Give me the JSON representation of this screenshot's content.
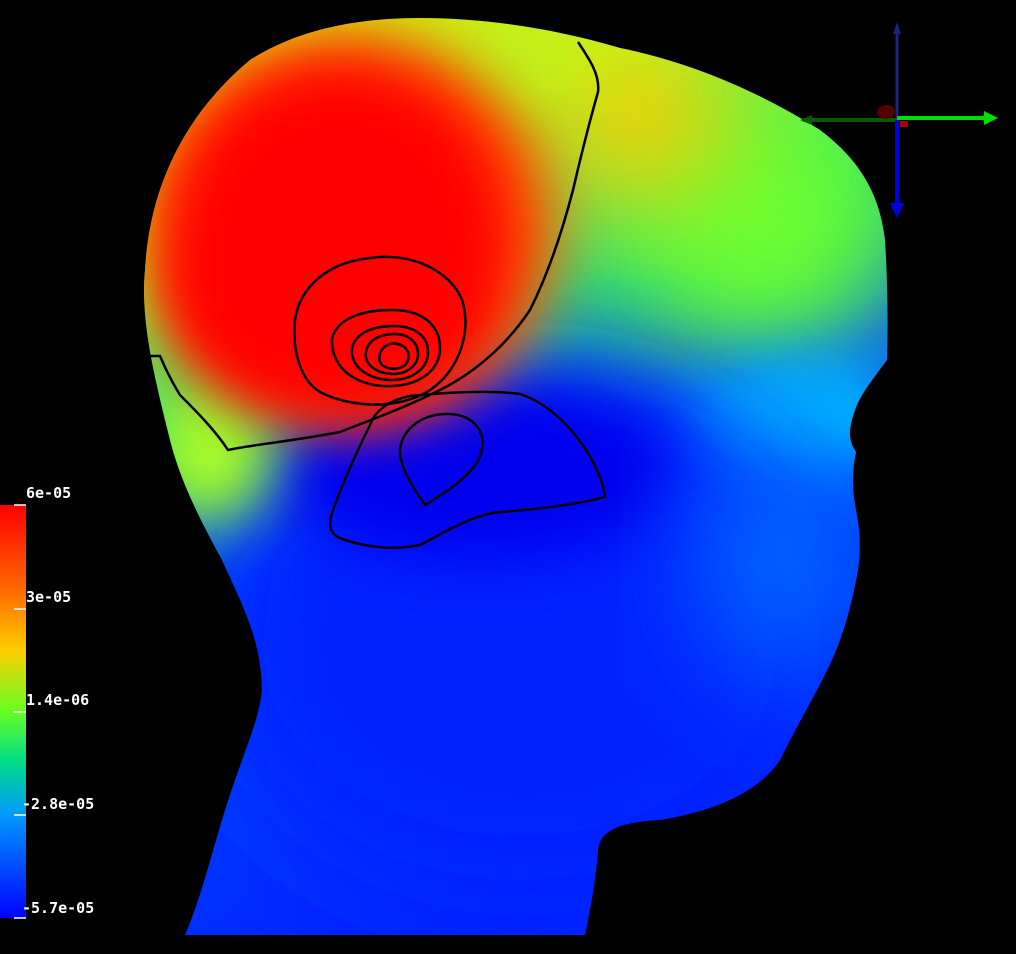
{
  "colorbar": {
    "ticks": [
      "6e-05",
      "3e-05",
      "1.4e-06",
      "-2.8e-05",
      "-5.7e-05"
    ],
    "colors": [
      "#ff0000",
      "#ff8800",
      "#ffff00",
      "#33ff33",
      "#00ccff",
      "#0000ff"
    ]
  },
  "axes_widget": {
    "x_color": "#00dd00",
    "y_color": "#0000dd",
    "z_color": "#cc0000"
  },
  "colors": {
    "background": "#000000",
    "contour": "#000000"
  }
}
